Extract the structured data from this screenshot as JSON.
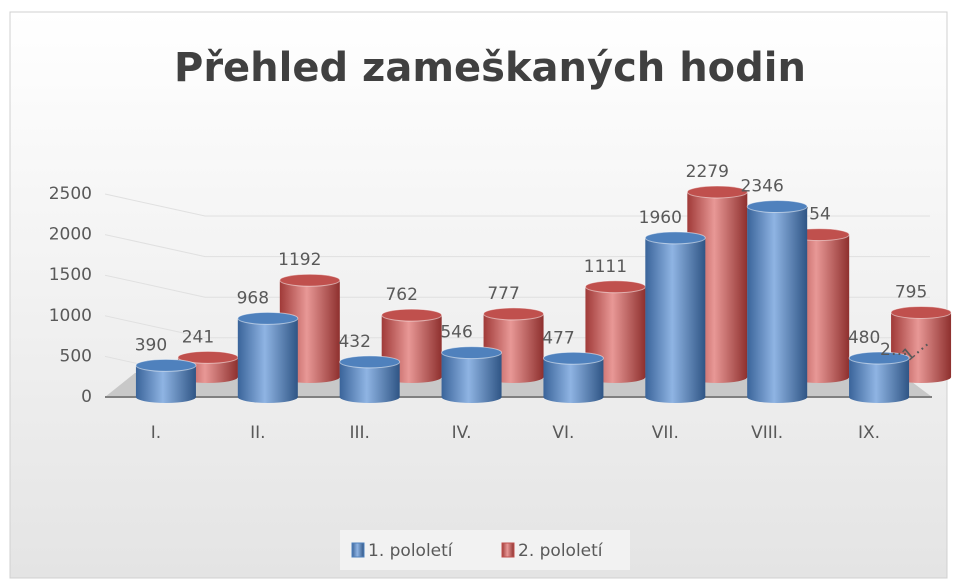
{
  "chart_data": {
    "type": "bar3d",
    "title": "Přehled zameškaných hodin",
    "categories": [
      "I.",
      "II.",
      "III.",
      "IV.",
      "VI.",
      "VII.",
      "VIII.",
      "IX."
    ],
    "series": [
      {
        "name": "1. pololetí",
        "color": "#4f81bd",
        "values": [
          390,
          968,
          432,
          546,
          477,
          1960,
          2346,
          480
        ]
      },
      {
        "name": "2. pololetí",
        "color": "#c0504d",
        "values": [
          241,
          1192,
          762,
          777,
          1111,
          2279,
          1754,
          795
        ]
      }
    ],
    "annotations": [
      "2…",
      "1…"
    ],
    "ylim": [
      0,
      2500
    ],
    "yticks": [
      0,
      500,
      1000,
      1500,
      2000,
      2500
    ],
    "grid": true,
    "legend": "bottom"
  }
}
